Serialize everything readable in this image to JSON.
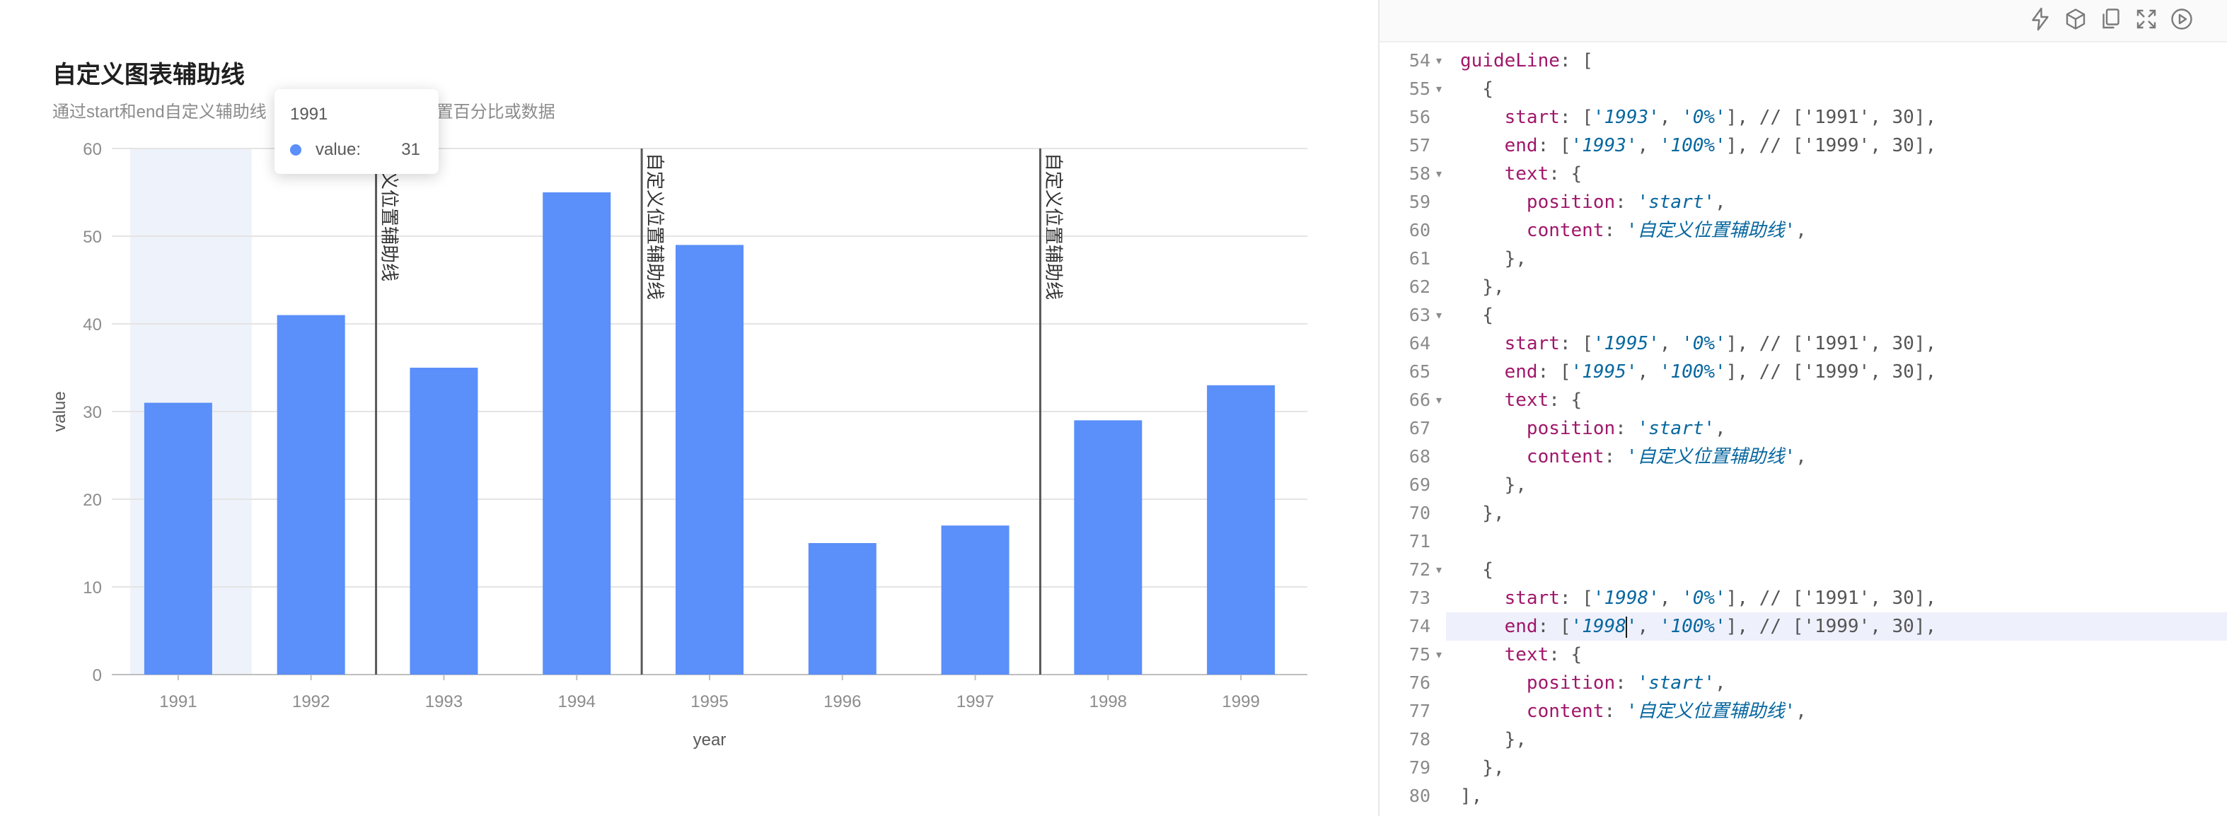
{
  "chart": {
    "title": "自定义图表辅助线",
    "subtitle": "通过start和end自定义辅助线",
    "subtitle_obscured_tail": "人设置百分比或数据",
    "tooltip": {
      "title": "1991",
      "series_name": "value:",
      "value": "31",
      "marker_color": "#5b8ff9"
    }
  },
  "chart_data": {
    "type": "bar",
    "categories": [
      "1991",
      "1992",
      "1993",
      "1994",
      "1995",
      "1996",
      "1997",
      "1998",
      "1999"
    ],
    "values": [
      31,
      41,
      35,
      55,
      49,
      15,
      17,
      29,
      33
    ],
    "xlabel": "year",
    "ylabel": "value",
    "ylim": [
      0,
      60
    ],
    "yticks": [
      0,
      10,
      20,
      30,
      40,
      50,
      60
    ],
    "grid": true,
    "bar_color": "#5b8ff9",
    "highlighted_category": "1991",
    "highlight_color": "#eef2fa",
    "guide_lines": [
      {
        "x": "1993",
        "position": "start",
        "content": "自定义位置辅助线",
        "visible_label": "定义位置辅助线"
      },
      {
        "x": "1995",
        "position": "start",
        "content": "自定义位置辅助线",
        "visible_label": "自定义位置辅助线"
      },
      {
        "x": "1998",
        "position": "start",
        "content": "自定义位置辅助线",
        "visible_label": "自定义位置辅助线"
      }
    ]
  },
  "editor": {
    "toolbar": [
      "lightning-icon",
      "cube-icon",
      "copy-icon",
      "fullscreen-icon",
      "play-icon"
    ],
    "active_line": 74,
    "lines": [
      {
        "n": 54,
        "fold": true,
        "t": [
          [
            "key",
            "guideLine"
          ],
          [
            "p",
            ": ["
          ]
        ]
      },
      {
        "n": 55,
        "fold": true,
        "t": [
          [
            "p",
            "  {"
          ]
        ]
      },
      {
        "n": 56,
        "fold": false,
        "t": [
          [
            "key",
            "    start"
          ],
          [
            "p",
            ": ["
          ],
          [
            "str",
            "'1993'"
          ],
          [
            "p",
            ", "
          ],
          [
            "str",
            "'0%'"
          ],
          [
            "p",
            "], "
          ],
          [
            "cmt",
            "// ['1991', 30],"
          ]
        ]
      },
      {
        "n": 57,
        "fold": false,
        "t": [
          [
            "key",
            "    end"
          ],
          [
            "p",
            ": ["
          ],
          [
            "str",
            "'1993'"
          ],
          [
            "p",
            ", "
          ],
          [
            "str",
            "'100%'"
          ],
          [
            "p",
            "], "
          ],
          [
            "cmt",
            "// ['1999', 30],"
          ]
        ]
      },
      {
        "n": 58,
        "fold": true,
        "t": [
          [
            "key",
            "    text"
          ],
          [
            "p",
            ": {"
          ]
        ]
      },
      {
        "n": 59,
        "fold": false,
        "t": [
          [
            "key",
            "      position"
          ],
          [
            "p",
            ": "
          ],
          [
            "str",
            "'start'"
          ],
          [
            "p",
            ","
          ]
        ]
      },
      {
        "n": 60,
        "fold": false,
        "t": [
          [
            "key",
            "      content"
          ],
          [
            "p",
            ": "
          ],
          [
            "str",
            "'自定义位置辅助线'"
          ],
          [
            "p",
            ","
          ]
        ]
      },
      {
        "n": 61,
        "fold": false,
        "t": [
          [
            "p",
            "    },"
          ]
        ]
      },
      {
        "n": 62,
        "fold": false,
        "t": [
          [
            "p",
            "  },"
          ]
        ]
      },
      {
        "n": 63,
        "fold": true,
        "t": [
          [
            "p",
            "  {"
          ]
        ]
      },
      {
        "n": 64,
        "fold": false,
        "t": [
          [
            "key",
            "    start"
          ],
          [
            "p",
            ": ["
          ],
          [
            "str",
            "'1995'"
          ],
          [
            "p",
            ", "
          ],
          [
            "str",
            "'0%'"
          ],
          [
            "p",
            "], "
          ],
          [
            "cmt",
            "// ['1991', 30],"
          ]
        ]
      },
      {
        "n": 65,
        "fold": false,
        "t": [
          [
            "key",
            "    end"
          ],
          [
            "p",
            ": ["
          ],
          [
            "str",
            "'1995'"
          ],
          [
            "p",
            ", "
          ],
          [
            "str",
            "'100%'"
          ],
          [
            "p",
            "], "
          ],
          [
            "cmt",
            "// ['1999', 30],"
          ]
        ]
      },
      {
        "n": 66,
        "fold": true,
        "t": [
          [
            "key",
            "    text"
          ],
          [
            "p",
            ": {"
          ]
        ]
      },
      {
        "n": 67,
        "fold": false,
        "t": [
          [
            "key",
            "      position"
          ],
          [
            "p",
            ": "
          ],
          [
            "str",
            "'start'"
          ],
          [
            "p",
            ","
          ]
        ]
      },
      {
        "n": 68,
        "fold": false,
        "t": [
          [
            "key",
            "      content"
          ],
          [
            "p",
            ": "
          ],
          [
            "str",
            "'自定义位置辅助线'"
          ],
          [
            "p",
            ","
          ]
        ]
      },
      {
        "n": 69,
        "fold": false,
        "t": [
          [
            "p",
            "    },"
          ]
        ]
      },
      {
        "n": 70,
        "fold": false,
        "t": [
          [
            "p",
            "  },"
          ]
        ]
      },
      {
        "n": 71,
        "fold": false,
        "t": []
      },
      {
        "n": 72,
        "fold": true,
        "t": [
          [
            "p",
            "  {"
          ]
        ]
      },
      {
        "n": 73,
        "fold": false,
        "t": [
          [
            "key",
            "    start"
          ],
          [
            "p",
            ": ["
          ],
          [
            "str",
            "'1998'"
          ],
          [
            "p",
            ", "
          ],
          [
            "str",
            "'0%'"
          ],
          [
            "p",
            "], "
          ],
          [
            "cmt",
            "// ['1991', 30],"
          ]
        ]
      },
      {
        "n": 74,
        "fold": false,
        "t": [
          [
            "key",
            "    end"
          ],
          [
            "p",
            ": ["
          ],
          [
            "str",
            "'1998"
          ],
          [
            "cursor",
            ""
          ],
          [
            "str",
            "'"
          ],
          [
            "p",
            ", "
          ],
          [
            "str",
            "'100%'"
          ],
          [
            "p",
            "], "
          ],
          [
            "cmt",
            "// ['1999', 30],"
          ]
        ]
      },
      {
        "n": 75,
        "fold": true,
        "t": [
          [
            "key",
            "    text"
          ],
          [
            "p",
            ": {"
          ]
        ]
      },
      {
        "n": 76,
        "fold": false,
        "t": [
          [
            "key",
            "      position"
          ],
          [
            "p",
            ": "
          ],
          [
            "str",
            "'start'"
          ],
          [
            "p",
            ","
          ]
        ]
      },
      {
        "n": 77,
        "fold": false,
        "t": [
          [
            "key",
            "      content"
          ],
          [
            "p",
            ": "
          ],
          [
            "str",
            "'自定义位置辅助线'"
          ],
          [
            "p",
            ","
          ]
        ]
      },
      {
        "n": 78,
        "fold": false,
        "t": [
          [
            "p",
            "    },"
          ]
        ]
      },
      {
        "n": 79,
        "fold": false,
        "t": [
          [
            "p",
            "  },"
          ]
        ]
      },
      {
        "n": 80,
        "fold": false,
        "t": [
          [
            "p",
            "],"
          ]
        ]
      }
    ]
  }
}
